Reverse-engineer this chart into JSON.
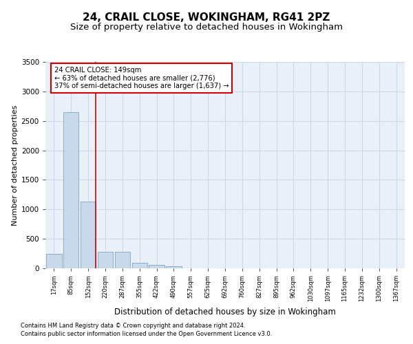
{
  "title1": "24, CRAIL CLOSE, WOKINGHAM, RG41 2PZ",
  "title2": "Size of property relative to detached houses in Wokingham",
  "xlabel": "Distribution of detached houses by size in Wokingham",
  "ylabel": "Number of detached properties",
  "footnote1": "Contains HM Land Registry data © Crown copyright and database right 2024.",
  "footnote2": "Contains public sector information licensed under the Open Government Licence v3.0.",
  "bar_labels": [
    "17sqm",
    "85sqm",
    "152sqm",
    "220sqm",
    "287sqm",
    "355sqm",
    "422sqm",
    "490sqm",
    "557sqm",
    "625sqm",
    "692sqm",
    "760sqm",
    "827sqm",
    "895sqm",
    "962sqm",
    "1030sqm",
    "1097sqm",
    "1165sqm",
    "1232sqm",
    "1300sqm",
    "1367sqm"
  ],
  "bar_values": [
    250,
    2650,
    1130,
    280,
    280,
    95,
    55,
    30,
    0,
    0,
    0,
    0,
    0,
    0,
    0,
    0,
    0,
    0,
    0,
    0,
    0
  ],
  "bar_color": "#c9d9ec",
  "bar_edge_color": "#7ba7c7",
  "red_line_x": 2.45,
  "annotation_text": "24 CRAIL CLOSE: 149sqm\n← 63% of detached houses are smaller (2,776)\n37% of semi-detached houses are larger (1,637) →",
  "annotation_box_color": "#ffffff",
  "annotation_box_edge": "#cc0000",
  "ylim": [
    0,
    3500
  ],
  "yticks": [
    0,
    500,
    1000,
    1500,
    2000,
    2500,
    3000,
    3500
  ],
  "grid_color": "#d0d8e8",
  "plot_bg": "#eaf0f8",
  "title1_fontsize": 11,
  "title2_fontsize": 9.5,
  "xlabel_fontsize": 8.5,
  "ylabel_fontsize": 8,
  "red_line_color": "#cc0000",
  "footnote_fontsize": 6.0
}
